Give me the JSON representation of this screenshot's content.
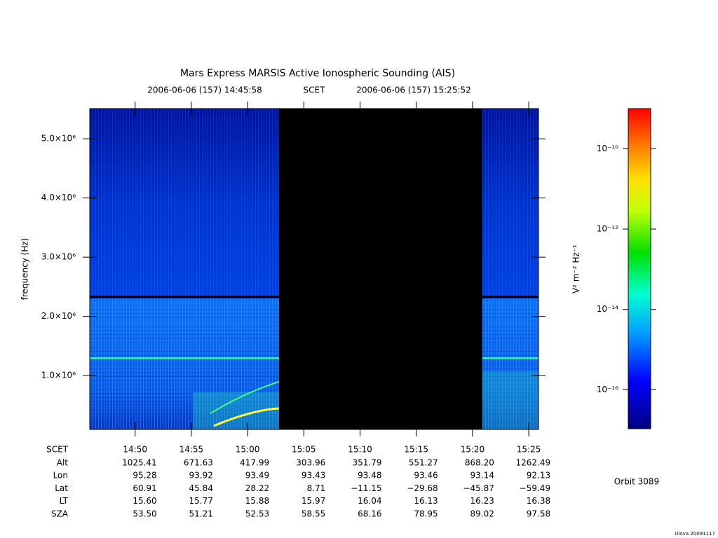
{
  "chart_data": {
    "type": "spectrogram",
    "title": "Mars Express MARSIS Active Ionospheric Sounding (AIS)",
    "start_time": "2006-06-06 (157) 14:45:58",
    "time_system": "SCET",
    "end_time": "2006-06-06 (157) 15:25:52",
    "y_label": "frequency (Hz)",
    "xlim": [
      53158,
      55552
    ],
    "xticks": [
      {
        "value": 53400,
        "label": "14:50"
      },
      {
        "value": 53700,
        "label": "14:55"
      },
      {
        "value": 54000,
        "label": "15:00"
      },
      {
        "value": 54300,
        "label": "15:05"
      },
      {
        "value": 54600,
        "label": "15:10"
      },
      {
        "value": 54900,
        "label": "15:15"
      },
      {
        "value": 55200,
        "label": "15:20"
      },
      {
        "value": 55500,
        "label": "15:25"
      }
    ],
    "ylim": [
      90000,
      5510000
    ],
    "yticks": [
      {
        "value": 1000000,
        "label": "1.0×10⁶"
      },
      {
        "value": 2000000,
        "label": "2.0×10⁶"
      },
      {
        "value": 3000000,
        "label": "3.0×10⁶"
      },
      {
        "value": 4000000,
        "label": "4.0×10⁶"
      },
      {
        "value": 5000000,
        "label": "5.0×10⁶"
      }
    ],
    "data_gap": [
      54168,
      55252
    ],
    "colorbar": {
      "label": "V² m⁻² Hz⁻¹",
      "log_scale": true,
      "clim": [
        1.07e-17,
        1e-09
      ],
      "ticks": [
        {
          "value": 1e-10,
          "label": "10⁻¹⁰"
        },
        {
          "value": 1e-12,
          "label": "10⁻¹²"
        },
        {
          "value": 1e-14,
          "label": "10⁻¹⁴"
        },
        {
          "value": 1e-16,
          "label": "10⁻¹⁶"
        }
      ]
    },
    "ephemeris": {
      "time_label": "SCET",
      "rows": [
        {
          "name": "Alt",
          "values": [
            "1025.41",
            "671.63",
            "417.99",
            "303.96",
            "351.79",
            "551.27",
            "868.20",
            "1262.49"
          ]
        },
        {
          "name": "Lon",
          "values": [
            "95.28",
            "93.92",
            "93.49",
            "93.43",
            "93.48",
            "93.46",
            "93.14",
            "92.13"
          ]
        },
        {
          "name": "Lat",
          "values": [
            "60.91",
            "45.84",
            "28.22",
            "8.71",
            "−11.15",
            "−29.68",
            "−45.87",
            "−59.49"
          ]
        },
        {
          "name": "LT",
          "values": [
            "15.60",
            "15.77",
            "15.88",
            "15.97",
            "16.04",
            "16.13",
            "16.23",
            "16.38"
          ]
        },
        {
          "name": "SZA",
          "values": [
            "53.50",
            "51.21",
            "52.53",
            "58.55",
            "68.16",
            "78.95",
            "89.02",
            "97.58"
          ]
        }
      ]
    },
    "orbit": "Orbit 3089",
    "footer": "Ulova 20091117"
  }
}
